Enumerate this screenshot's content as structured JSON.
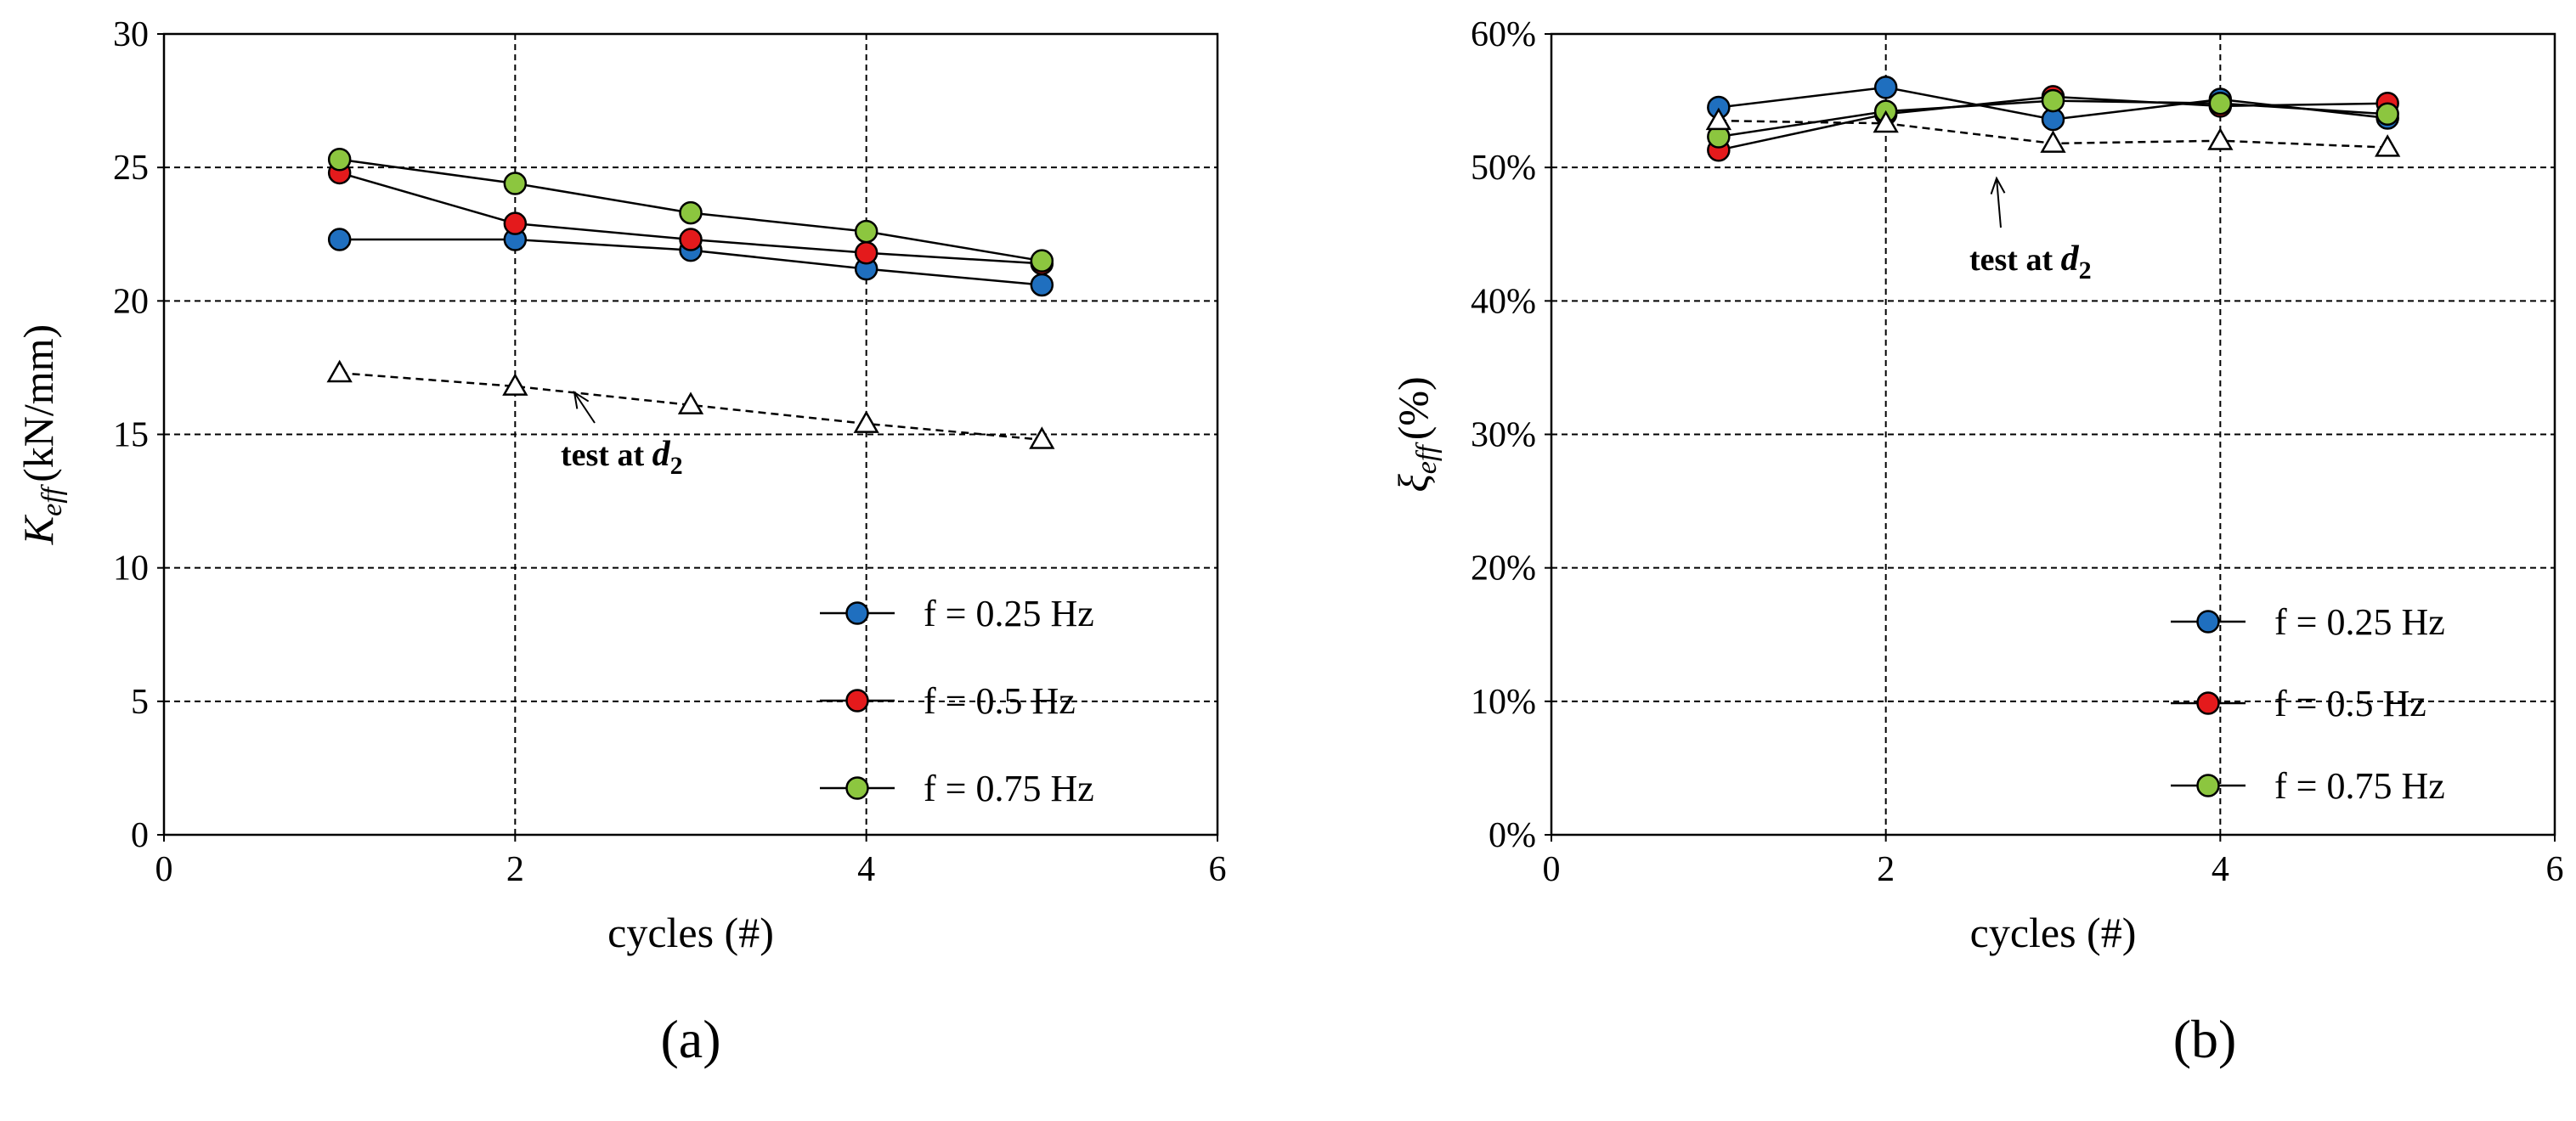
{
  "chart_data": [
    {
      "type": "line",
      "panel_label": "(a)",
      "xlabel": "cycles (#)",
      "ylabel": "K_eff (kN/mm)",
      "ylabel_main": "K",
      "ylabel_sub": "eff",
      "ylabel_unit": "(kN/mm)",
      "xlim": [
        0,
        6
      ],
      "ylim": [
        0,
        30
      ],
      "xticks": [
        "0",
        "2",
        "4",
        "6"
      ],
      "yticks": [
        "0",
        "5",
        "10",
        "15",
        "20",
        "25",
        "30"
      ],
      "x": [
        1,
        2,
        3,
        4,
        5
      ],
      "series": [
        {
          "name": "f = 0.25 Hz",
          "color": "#1f6fbf",
          "marker": "circle",
          "values": [
            22.3,
            22.3,
            21.9,
            21.2,
            20.6
          ]
        },
        {
          "name": "f = 0.5 Hz",
          "color": "#e41a1c",
          "marker": "circle",
          "values": [
            24.8,
            22.9,
            22.3,
            21.8,
            21.4
          ]
        },
        {
          "name": "f = 0.75 Hz",
          "color": "#8cc63f",
          "marker": "circle",
          "values": [
            25.3,
            24.4,
            23.3,
            22.6,
            21.5
          ]
        },
        {
          "name": "test at d2",
          "color": "#000000",
          "marker": "triangle-open",
          "dashed": true,
          "values": [
            17.3,
            16.8,
            16.1,
            15.4,
            14.8
          ]
        }
      ],
      "annotation": {
        "text": "test at ",
        "var": "d",
        "sub": "2"
      },
      "legend": "bottom-right"
    },
    {
      "type": "line",
      "panel_label": "(b)",
      "xlabel": "cycles (#)",
      "ylabel": "ξ_eff (%)",
      "ylabel_main": "ξ",
      "ylabel_sub": "eff",
      "ylabel_unit": "(%)",
      "xlim": [
        0,
        6
      ],
      "ylim": [
        0,
        60
      ],
      "xticks": [
        "0",
        "2",
        "4",
        "6"
      ],
      "yticks": [
        "0%",
        "10%",
        "20%",
        "30%",
        "40%",
        "50%",
        "60%"
      ],
      "x": [
        1,
        2,
        3,
        4,
        5
      ],
      "series": [
        {
          "name": "f = 0.25 Hz",
          "color": "#1f6fbf",
          "marker": "circle",
          "values": [
            54.5,
            56.0,
            53.6,
            55.1,
            53.7
          ]
        },
        {
          "name": "f = 0.5 Hz",
          "color": "#e41a1c",
          "marker": "circle",
          "values": [
            51.3,
            54.0,
            55.3,
            54.6,
            54.8
          ]
        },
        {
          "name": "f = 0.75 Hz",
          "color": "#8cc63f",
          "marker": "circle",
          "values": [
            52.3,
            54.2,
            55.0,
            54.8,
            54.0
          ]
        },
        {
          "name": "test at d2",
          "color": "#000000",
          "marker": "triangle-open",
          "dashed": true,
          "values": [
            53.5,
            53.3,
            51.8,
            52.0,
            51.5
          ]
        }
      ],
      "annotation": {
        "text": "test at ",
        "var": "d",
        "sub": "2"
      },
      "legend": "bottom-right"
    }
  ]
}
